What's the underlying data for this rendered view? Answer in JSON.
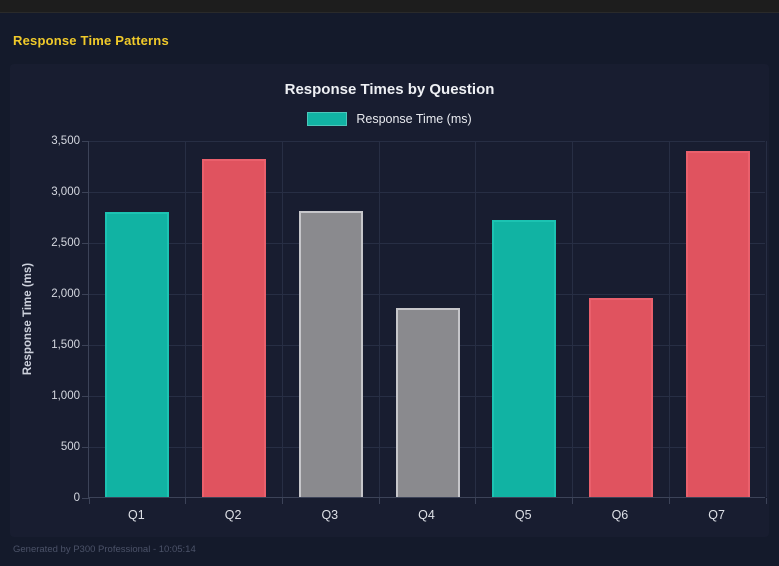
{
  "page": {
    "heading": "Response Time Patterns",
    "footer": "Generated by P300 Professional - 10:05:14"
  },
  "colors": {
    "background": "#141a2b",
    "card": "#181d30",
    "top_strip": "#1d1d1d",
    "heading_yellow": "#f0ca2a",
    "teal": "#11b3a3",
    "red": "#e0535f",
    "gray": "#8a8a8e",
    "gray_border": "#c6c6ca",
    "teal_border": "#1cc3b2",
    "red_border": "#ea606c",
    "gridline": "#272e44",
    "axis_line": "#3c4358"
  },
  "chart_data": {
    "type": "bar",
    "title": "Response Times by Question",
    "categories": [
      "Q1",
      "Q2",
      "Q3",
      "Q4",
      "Q5",
      "Q6",
      "Q7"
    ],
    "values": [
      2790,
      3310,
      2800,
      1850,
      2720,
      1950,
      3390
    ],
    "bar_colors": [
      "#11b3a3",
      "#e0535f",
      "#8a8a8e",
      "#8a8a8e",
      "#11b3a3",
      "#e0535f",
      "#e0535f"
    ],
    "bar_border_colors": [
      "#1cc3b2",
      "#ea606c",
      "#c6c6ca",
      "#c6c6ca",
      "#1cc3b2",
      "#ea606c",
      "#ea606c"
    ],
    "xlabel": "",
    "ylabel": "Response Time (ms)",
    "ylim": [
      0,
      3500
    ],
    "ytick_step": 500,
    "ytick_labels": [
      "0",
      "500",
      "1,000",
      "1,500",
      "2,000",
      "2,500",
      "3,000",
      "3,500"
    ],
    "legend": {
      "label": "Response Time (ms)",
      "color": "#11b3a3",
      "position": "top"
    },
    "grid": true
  }
}
